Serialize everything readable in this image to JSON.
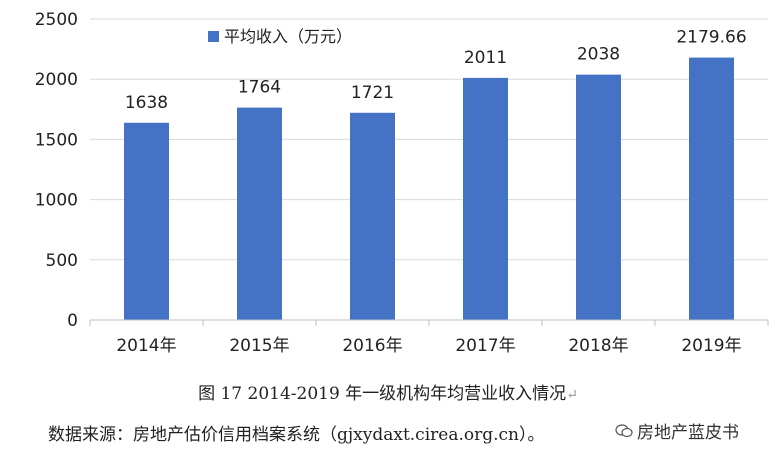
{
  "chart_data": {
    "type": "bar",
    "categories": [
      "2014年",
      "2015年",
      "2016年",
      "2017年",
      "2018年",
      "2019年"
    ],
    "series": [
      {
        "name": "平均收入（万元）",
        "values": [
          1638,
          1764,
          1721,
          2011,
          2038,
          2179.66
        ],
        "color": "#4472c4"
      }
    ],
    "data_labels": [
      "1638",
      "1764",
      "1721",
      "2011",
      "2038",
      "2179.66"
    ],
    "title": "",
    "xlabel": "",
    "ylabel": "",
    "ylim": [
      0,
      2500
    ],
    "yticks": [
      0,
      500,
      1000,
      1500,
      2000,
      2500
    ],
    "ytick_labels": [
      "0",
      "500",
      "1000",
      "1500",
      "2000",
      "2500"
    ],
    "grid": true,
    "legend_position": "top-left"
  },
  "caption": {
    "figure_title": "图 17 2014-2019 年一级机构年均营业收入情况",
    "return_mark": "↵",
    "source": "数据来源：房地产估价信用档案系统（gjxydaxt.cirea.org.cn）。"
  },
  "watermark": {
    "text": "房地产蓝皮书",
    "logo_icon": "wechat-icon"
  }
}
